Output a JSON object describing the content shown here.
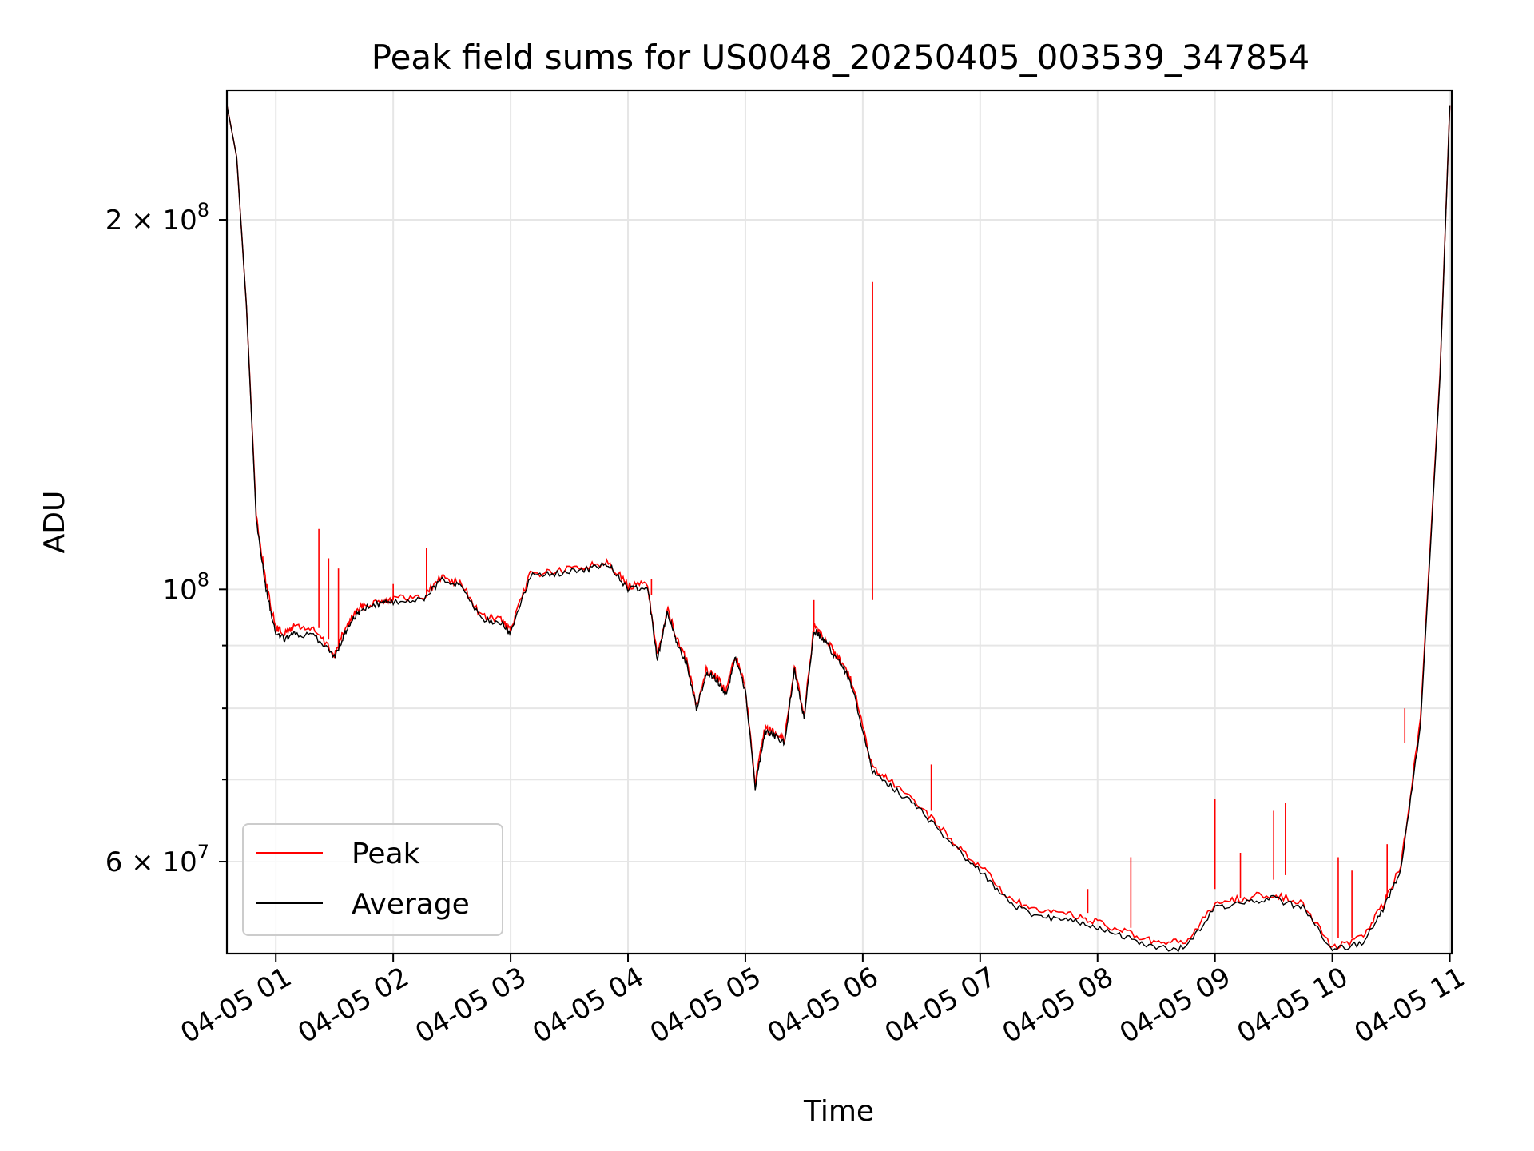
{
  "chart_data": {
    "type": "line",
    "title": "Peak field sums for US0048_20250405_003539_347854",
    "xlabel": "Time",
    "ylabel": "ADU",
    "y_scale": "log",
    "ylim": [
      50500000,
      255000000
    ],
    "xlim": [
      "2025-04-05T00:35",
      "2025-04-05T11:01"
    ],
    "grid": true,
    "legend_position": "lower-left",
    "x_ticks": [
      "04-05 01",
      "04-05 02",
      "04-05 03",
      "04-05 04",
      "04-05 05",
      "04-05 06",
      "04-05 07",
      "04-05 08",
      "04-05 09",
      "04-05 10",
      "04-05 11"
    ],
    "x_tick_times": [
      "2025-04-05T01:00",
      "2025-04-05T02:00",
      "2025-04-05T03:00",
      "2025-04-05T04:00",
      "2025-04-05T05:00",
      "2025-04-05T06:00",
      "2025-04-05T07:00",
      "2025-04-05T08:00",
      "2025-04-05T09:00",
      "2025-04-05T10:00",
      "2025-04-05T11:00"
    ],
    "y_major_ticks": [
      {
        "value": 60000000,
        "mantissa": "6",
        "exponent": "7"
      },
      {
        "value": 100000000,
        "mantissa": "",
        "exponent": "8"
      },
      {
        "value": 200000000,
        "mantissa": "2",
        "exponent": "8"
      }
    ],
    "y_minor_ticks": [
      70000000,
      80000000,
      90000000
    ],
    "colors": {
      "peak": "#ff0000",
      "average": "#000000"
    },
    "series": [
      {
        "name": "Peak",
        "color": "#ff0000",
        "x": [
          "2025-04-05T00:35",
          "2025-04-05T00:40",
          "2025-04-05T00:45",
          "2025-04-05T00:50",
          "2025-04-05T00:55",
          "2025-04-05T01:00",
          "2025-04-05T01:05",
          "2025-04-05T01:10",
          "2025-04-05T01:20",
          "2025-04-05T01:30",
          "2025-04-05T01:35",
          "2025-04-05T01:40",
          "2025-04-05T01:45",
          "2025-04-05T01:55",
          "2025-04-05T02:00",
          "2025-04-05T02:15",
          "2025-04-05T02:25",
          "2025-04-05T02:35",
          "2025-04-05T02:45",
          "2025-04-05T02:55",
          "2025-04-05T03:00",
          "2025-04-05T03:10",
          "2025-04-05T03:25",
          "2025-04-05T03:40",
          "2025-04-05T03:50",
          "2025-04-05T04:00",
          "2025-04-05T04:10",
          "2025-04-05T04:15",
          "2025-04-05T04:20",
          "2025-04-05T04:25",
          "2025-04-05T04:30",
          "2025-04-05T04:35",
          "2025-04-05T04:40",
          "2025-04-05T04:45",
          "2025-04-05T04:50",
          "2025-04-05T04:55",
          "2025-04-05T05:00",
          "2025-04-05T05:05",
          "2025-04-05T05:10",
          "2025-04-05T05:15",
          "2025-04-05T05:20",
          "2025-04-05T05:25",
          "2025-04-05T05:30",
          "2025-04-05T05:35",
          "2025-04-05T05:40",
          "2025-04-05T05:45",
          "2025-04-05T05:50",
          "2025-04-05T05:55",
          "2025-04-05T06:05",
          "2025-04-05T06:15",
          "2025-04-05T06:30",
          "2025-04-05T06:45",
          "2025-04-05T07:00",
          "2025-04-05T07:15",
          "2025-04-05T07:30",
          "2025-04-05T07:45",
          "2025-04-05T08:00",
          "2025-04-05T08:15",
          "2025-04-05T08:30",
          "2025-04-05T08:45",
          "2025-04-05T09:00",
          "2025-04-05T09:15",
          "2025-04-05T09:30",
          "2025-04-05T09:45",
          "2025-04-05T10:00",
          "2025-04-05T10:15",
          "2025-04-05T10:25",
          "2025-04-05T10:35",
          "2025-04-05T10:45",
          "2025-04-05T10:55",
          "2025-04-05T11:00"
        ],
        "y": [
          248000000,
          225000000,
          170000000,
          115000000,
          101000000,
          93000000,
          92000000,
          93500000,
          92500000,
          88500000,
          92500000,
          95500000,
          97000000,
          98000000,
          98200000,
          98500000,
          102500000,
          101000000,
          95000000,
          94500000,
          92500000,
          103000000,
          103500000,
          104500000,
          105500000,
          100500000,
          101000000,
          88000000,
          96500000,
          91000000,
          87500000,
          80500000,
          86000000,
          85000000,
          82500000,
          88500000,
          83000000,
          69500000,
          77000000,
          76500000,
          75500000,
          86500000,
          79000000,
          93000000,
          91500000,
          89000000,
          87000000,
          83500000,
          71500000,
          69500000,
          66500000,
          62500000,
          59500000,
          56000000,
          54500000,
          54500000,
          53500000,
          52500000,
          51500000,
          51500000,
          55500000,
          56000000,
          56500000,
          55500000,
          51000000,
          52000000,
          55000000,
          59500000,
          78500000,
          150000000,
          248000000
        ]
      },
      {
        "name": "Average",
        "color": "#000000",
        "x": [
          "2025-04-05T00:35",
          "2025-04-05T00:40",
          "2025-04-05T00:45",
          "2025-04-05T00:50",
          "2025-04-05T00:55",
          "2025-04-05T01:00",
          "2025-04-05T01:05",
          "2025-04-05T01:10",
          "2025-04-05T01:20",
          "2025-04-05T01:30",
          "2025-04-05T01:35",
          "2025-04-05T01:40",
          "2025-04-05T01:45",
          "2025-04-05T01:55",
          "2025-04-05T02:00",
          "2025-04-05T02:15",
          "2025-04-05T02:25",
          "2025-04-05T02:35",
          "2025-04-05T02:45",
          "2025-04-05T02:55",
          "2025-04-05T03:00",
          "2025-04-05T03:10",
          "2025-04-05T03:25",
          "2025-04-05T03:40",
          "2025-04-05T03:50",
          "2025-04-05T04:00",
          "2025-04-05T04:10",
          "2025-04-05T04:15",
          "2025-04-05T04:20",
          "2025-04-05T04:25",
          "2025-04-05T04:30",
          "2025-04-05T04:35",
          "2025-04-05T04:40",
          "2025-04-05T04:45",
          "2025-04-05T04:50",
          "2025-04-05T04:55",
          "2025-04-05T05:00",
          "2025-04-05T05:05",
          "2025-04-05T05:10",
          "2025-04-05T05:15",
          "2025-04-05T05:20",
          "2025-04-05T05:25",
          "2025-04-05T05:30",
          "2025-04-05T05:35",
          "2025-04-05T05:40",
          "2025-04-05T05:45",
          "2025-04-05T05:50",
          "2025-04-05T05:55",
          "2025-04-05T06:05",
          "2025-04-05T06:15",
          "2025-04-05T06:30",
          "2025-04-05T06:45",
          "2025-04-05T07:00",
          "2025-04-05T07:15",
          "2025-04-05T07:30",
          "2025-04-05T07:45",
          "2025-04-05T08:00",
          "2025-04-05T08:15",
          "2025-04-05T08:30",
          "2025-04-05T08:45",
          "2025-04-05T09:00",
          "2025-04-05T09:15",
          "2025-04-05T09:30",
          "2025-04-05T09:45",
          "2025-04-05T10:00",
          "2025-04-05T10:15",
          "2025-04-05T10:25",
          "2025-04-05T10:35",
          "2025-04-05T10:45",
          "2025-04-05T10:55",
          "2025-04-05T11:00"
        ],
        "y": [
          248000000,
          225000000,
          170000000,
          114000000,
          100000000,
          92000000,
          91000000,
          92000000,
          91500000,
          88000000,
          92000000,
          95000000,
          96500000,
          97500000,
          97700000,
          98000000,
          102000000,
          100500000,
          94500000,
          94000000,
          92000000,
          102500000,
          103000000,
          104000000,
          105000000,
          100000000,
          100500000,
          87500000,
          96000000,
          90500000,
          87000000,
          80000000,
          85500000,
          84500000,
          82000000,
          88000000,
          82500000,
          69000000,
          76500000,
          76000000,
          75000000,
          86000000,
          78500000,
          92500000,
          91000000,
          88500000,
          86500000,
          83000000,
          71000000,
          69000000,
          66000000,
          62000000,
          59000000,
          55500000,
          54000000,
          54000000,
          53000000,
          52000000,
          51000000,
          51000000,
          55000000,
          55500000,
          56000000,
          55000000,
          50800000,
          51500000,
          54500000,
          59000000,
          77500000,
          149000000,
          248000000
        ]
      }
    ],
    "spikes": [
      {
        "time": "2025-04-05T01:22",
        "peak": 112000000,
        "average": 93000000
      },
      {
        "time": "2025-04-05T01:27",
        "peak": 106000000,
        "average": 91000000
      },
      {
        "time": "2025-04-05T01:32",
        "peak": 104000000,
        "average": 89000000
      },
      {
        "time": "2025-04-05T02:00",
        "peak": 101000000,
        "average": 98000000
      },
      {
        "time": "2025-04-05T02:17",
        "peak": 108000000,
        "average": 99000000
      },
      {
        "time": "2025-04-05T04:12",
        "peak": 102000000,
        "average": 99000000
      },
      {
        "time": "2025-04-05T05:35",
        "peak": 98000000,
        "average": 92000000
      },
      {
        "time": "2025-04-05T06:05",
        "peak": 178000000,
        "average": 98000000
      },
      {
        "time": "2025-04-05T06:35",
        "peak": 72000000,
        "average": 66000000
      },
      {
        "time": "2025-04-05T07:55",
        "peak": 57000000,
        "average": 54500000
      },
      {
        "time": "2025-04-05T08:17",
        "peak": 60500000,
        "average": 53000000
      },
      {
        "time": "2025-04-05T09:00",
        "peak": 67500000,
        "average": 57000000
      },
      {
        "time": "2025-04-05T09:13",
        "peak": 61000000,
        "average": 56000000
      },
      {
        "time": "2025-04-05T09:30",
        "peak": 66000000,
        "average": 58000000
      },
      {
        "time": "2025-04-05T09:36",
        "peak": 67000000,
        "average": 58500000
      },
      {
        "time": "2025-04-05T10:03",
        "peak": 60500000,
        "average": 52000000
      },
      {
        "time": "2025-04-05T10:10",
        "peak": 59000000,
        "average": 52000000
      },
      {
        "time": "2025-04-05T10:28",
        "peak": 62000000,
        "average": 56000000
      },
      {
        "time": "2025-04-05T10:37",
        "peak": 80000000,
        "average": 75000000
      }
    ]
  }
}
